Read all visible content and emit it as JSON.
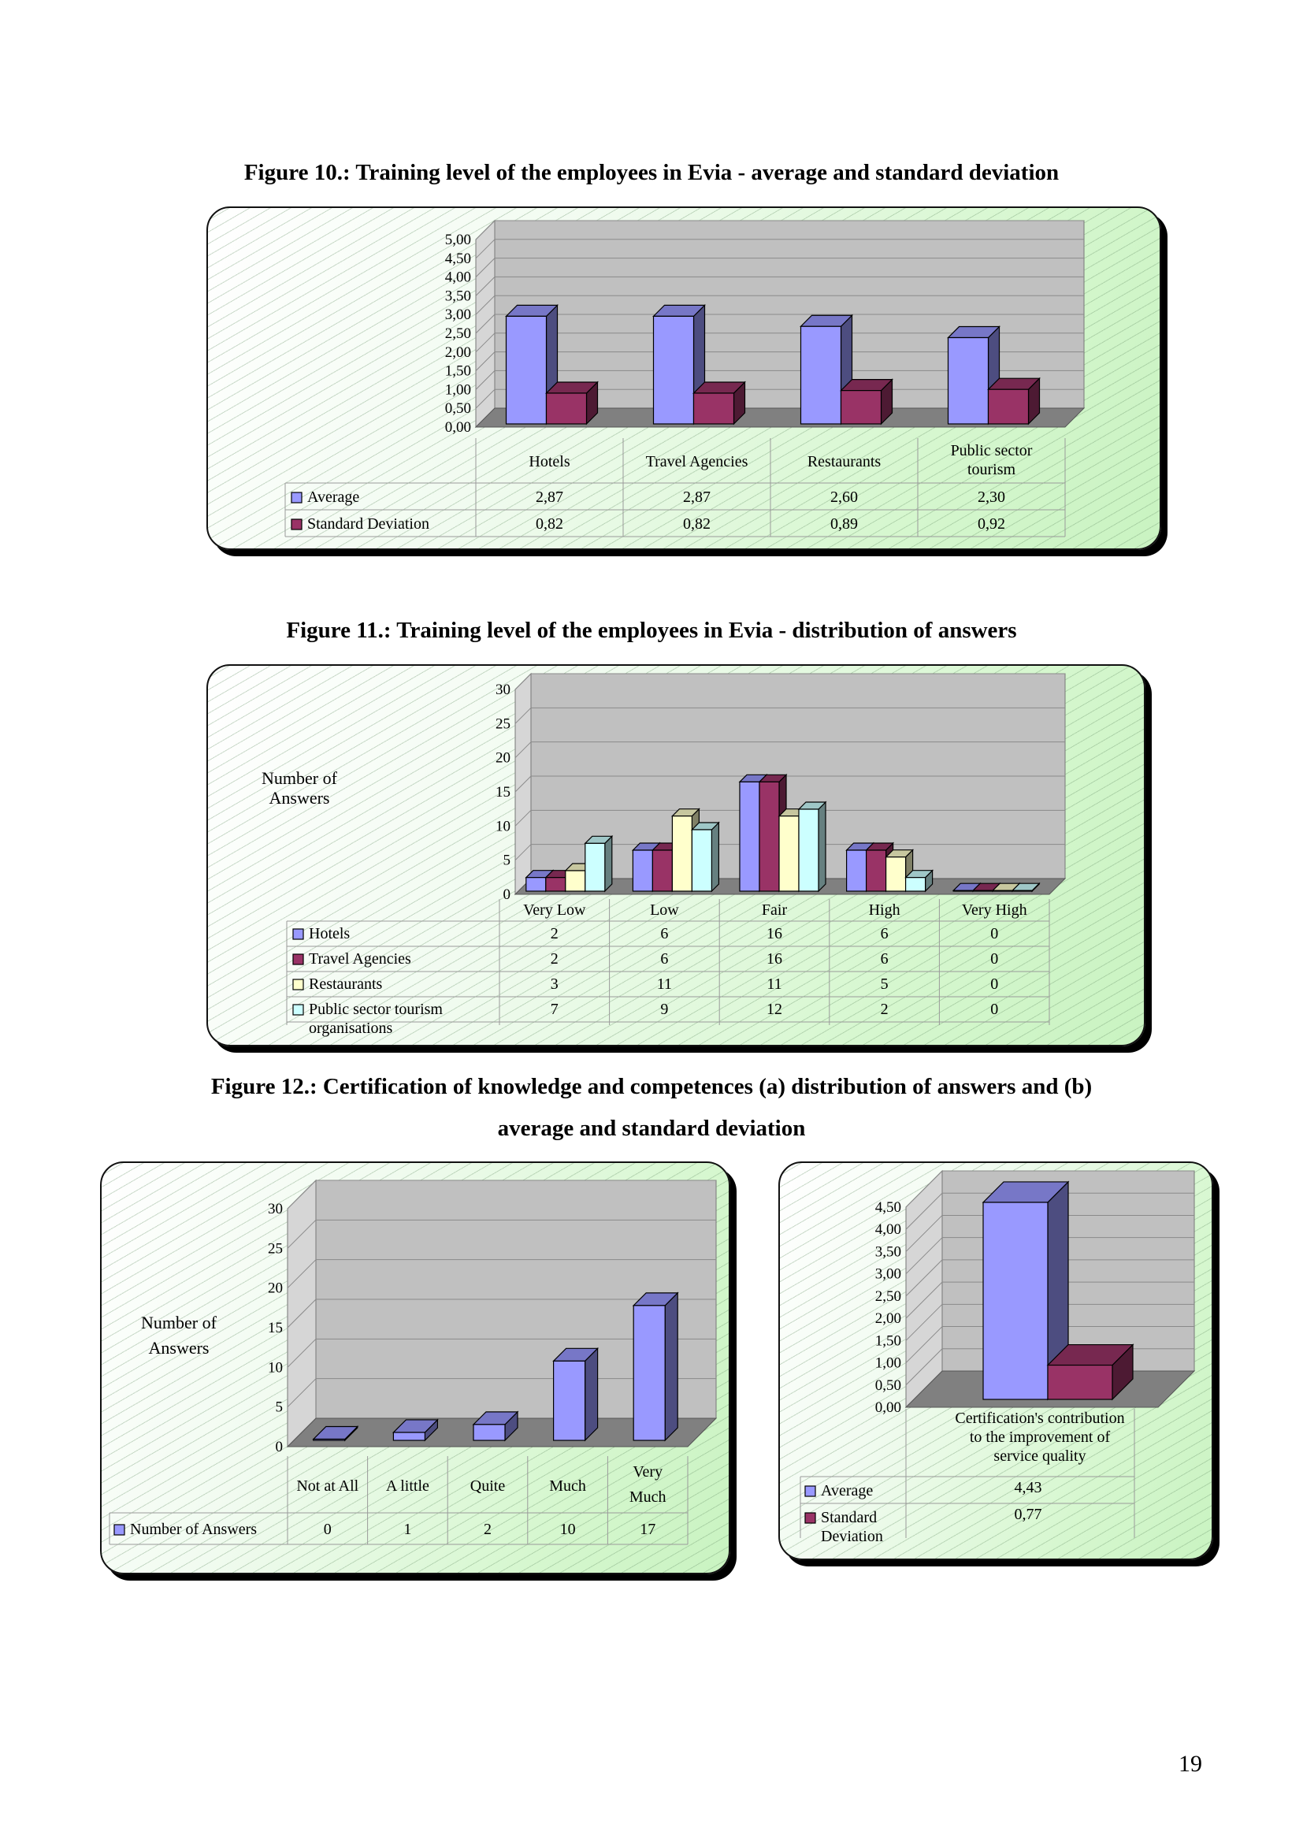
{
  "page": {
    "number": "19"
  },
  "figures": {
    "fig10": {
      "title": "Figure 10.: Training level of the employees in Evia - average and standard deviation"
    },
    "fig11": {
      "title": "Figure 11.: Training level of the employees in Evia - distribution of answers"
    },
    "fig12": {
      "title_line1": "Figure 12.: Certification of knowledge and competences (a) distribution of answers and (b)",
      "title_line2": "average and standard deviation"
    }
  },
  "colors": {
    "series_blue": "#9999ff",
    "series_maroon": "#993366",
    "series_cream": "#ffffcc",
    "series_cyan": "#ccffff",
    "plot_wall": "#c0c0c0",
    "plot_floor": "#808080"
  },
  "chart_data": [
    {
      "id": "fig10",
      "type": "bar",
      "title": "Figure 10.: Training level of the employees in Evia - average and standard deviation",
      "categories": [
        "Hotels",
        "Travel Agencies",
        "Restaurants",
        "Public sector tourism"
      ],
      "series": [
        {
          "name": "Average",
          "values": [
            2.87,
            2.87,
            2.6,
            2.3
          ],
          "labels": [
            "2,87",
            "2,87",
            "2,60",
            "2,30"
          ]
        },
        {
          "name": "Standard Deviation",
          "values": [
            0.82,
            0.82,
            0.89,
            0.92
          ],
          "labels": [
            "0,82",
            "0,82",
            "0,89",
            "0,92"
          ]
        }
      ],
      "yticks": [
        "0,00",
        "0,50",
        "1,00",
        "1,50",
        "2,00",
        "2,50",
        "3,00",
        "3,50",
        "4,00",
        "4,50",
        "5,00"
      ],
      "ylim": [
        0,
        5
      ],
      "grid": true,
      "legend": "data-table"
    },
    {
      "id": "fig11",
      "type": "bar",
      "title": "Figure 11.: Training level of the employees in Evia - distribution of answers",
      "ylabel": "Number of Answers",
      "categories": [
        "Very Low",
        "Low",
        "Fair",
        "High",
        "Very High"
      ],
      "series": [
        {
          "name": "Hotels",
          "values": [
            2,
            6,
            16,
            6,
            0
          ]
        },
        {
          "name": "Travel Agencies",
          "values": [
            2,
            6,
            16,
            6,
            0
          ]
        },
        {
          "name": "Restaurants",
          "values": [
            3,
            11,
            11,
            5,
            0
          ]
        },
        {
          "name": "Public sector tourism organisations",
          "values": [
            7,
            9,
            12,
            2,
            0
          ]
        }
      ],
      "yticks": [
        "0",
        "5",
        "10",
        "15",
        "20",
        "25",
        "30"
      ],
      "ylim": [
        0,
        30
      ],
      "grid": true,
      "legend": "data-table"
    },
    {
      "id": "fig12a",
      "type": "bar",
      "title": "Figure 12.: Certification of knowledge and competences (a) distribution of answers and (b) average and standard deviation",
      "ylabel": "Number of Answers",
      "categories": [
        "Not at All",
        "A little",
        "Quite",
        "Much",
        "Very Much"
      ],
      "series": [
        {
          "name": "Number of Answers",
          "values": [
            0,
            1,
            2,
            10,
            17
          ]
        }
      ],
      "yticks": [
        "0",
        "5",
        "10",
        "15",
        "20",
        "25",
        "30"
      ],
      "ylim": [
        0,
        30
      ],
      "grid": true,
      "legend": "data-table"
    },
    {
      "id": "fig12b",
      "type": "bar",
      "categories": [
        "Certification's contribution to the improvement of service quality"
      ],
      "series": [
        {
          "name": "Average",
          "values": [
            4.43
          ],
          "labels": [
            "4,43"
          ]
        },
        {
          "name": "Standard Deviation",
          "values": [
            0.77
          ],
          "labels": [
            "0,77"
          ]
        }
      ],
      "yticks": [
        "0,00",
        "0,50",
        "1,00",
        "1,50",
        "2,00",
        "2,50",
        "3,00",
        "3,50",
        "4,00",
        "4,50"
      ],
      "ylim": [
        0,
        4.5
      ],
      "grid": true,
      "legend": "data-table"
    }
  ]
}
